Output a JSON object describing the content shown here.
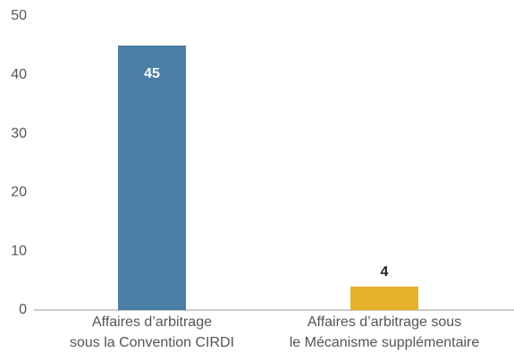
{
  "chart_data": {
    "type": "bar",
    "categories": [
      [
        "Affaires d’arbitrage",
        "sous la Convention CIRDI"
      ],
      [
        "Affaires d’arbitrage sous",
        "le Mécanisme supplémentaire"
      ]
    ],
    "values": [
      45,
      4
    ],
    "colors": [
      "#4a7fa6",
      "#e5b12b"
    ],
    "ylim": [
      0,
      50
    ],
    "yticks": [
      0,
      10,
      20,
      30,
      40,
      50
    ],
    "grid": false
  }
}
